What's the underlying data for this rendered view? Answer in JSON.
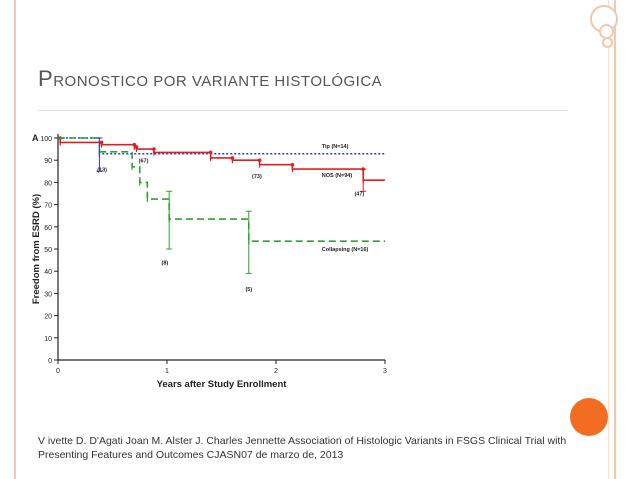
{
  "slide": {
    "title_first_letter": "P",
    "title_rest": "RONOSTICO POR VARIANTE HISTOLÓGICA",
    "caption_line1": "V ivette D. D'Agati Joan M. Alster J. Charles Jennette Association of Histologic Variants in FSGS Clinical Trial with",
    "caption_line2": "Presenting Features and Outcomes CJASN07 de marzo de, 2013",
    "accent_color": "#f26d21",
    "frame_color": "#f2c8b0"
  },
  "chart_data": {
    "type": "line",
    "panel_label": "A",
    "xlabel": "Years after Study Enrollment",
    "ylabel": "Freedom from ESRD (%)",
    "xlim": [
      0,
      3
    ],
    "ylim": [
      0,
      100
    ],
    "x_ticks": [
      "0",
      "1",
      "2",
      "3"
    ],
    "y_ticks": [
      "0",
      "10",
      "20",
      "30",
      "40",
      "50",
      "60",
      "70",
      "80",
      "90",
      "100"
    ],
    "grid": false,
    "series": [
      {
        "name": "Tip (N=14)",
        "color": "#3040c0",
        "style": "dotted",
        "x": [
          0,
          0.38,
          0.38,
          3.0
        ],
        "y": [
          100,
          100,
          92.9,
          92.9
        ]
      },
      {
        "name": "NOS (N=94)",
        "color": "#e02020",
        "style": "solid",
        "x": [
          0,
          0.02,
          0.02,
          0.4,
          0.4,
          0.7,
          0.7,
          0.72,
          0.72,
          0.88,
          0.88,
          1.4,
          1.4,
          1.6,
          1.6,
          1.85,
          1.85,
          2.15,
          2.15,
          2.8,
          2.8,
          3.0
        ],
        "y": [
          100,
          100,
          98,
          98,
          97,
          97,
          96,
          96,
          95,
          95,
          93.5,
          93.5,
          91,
          91,
          90,
          90,
          88,
          88,
          86,
          86,
          81,
          81
        ]
      },
      {
        "name": "Collapsing (N=16)",
        "color": "#30a030",
        "style": "dashed",
        "x": [
          0,
          0.38,
          0.38,
          0.68,
          0.68,
          0.75,
          0.75,
          0.82,
          0.82,
          1.02,
          1.02,
          1.75,
          1.75,
          3.0
        ],
        "y": [
          100,
          100,
          93.8,
          93.8,
          87,
          87,
          80,
          80,
          72.5,
          72.5,
          63.5,
          63.5,
          53.5,
          53.5
        ]
      }
    ],
    "annotations": [
      "(13)",
      "(67)",
      "(73)",
      "(47)",
      "(8)",
      "(5)"
    ]
  }
}
